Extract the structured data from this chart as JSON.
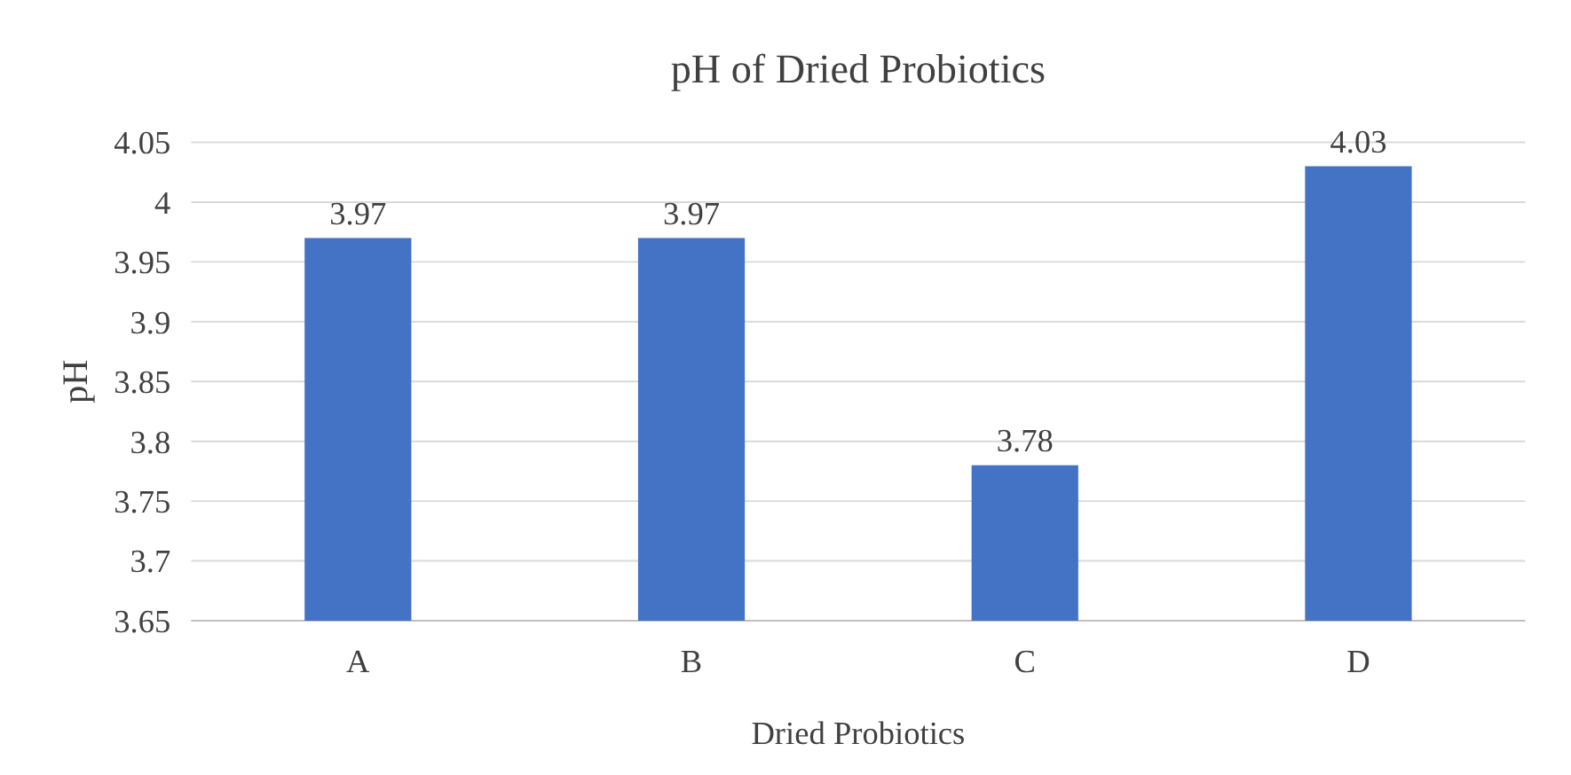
{
  "chart_data": {
    "type": "bar",
    "title": "pH of Dried Probiotics",
    "xlabel": "Dried Probiotics",
    "ylabel": "pH",
    "categories": [
      "A",
      "B",
      "C",
      "D"
    ],
    "values": [
      3.97,
      3.97,
      3.78,
      4.03
    ],
    "color": "#4472c4",
    "ylim": [
      3.65,
      4.05
    ],
    "yticks": [
      3.65,
      3.7,
      3.75,
      3.8,
      3.85,
      3.9,
      3.95,
      {
        "value": 4,
        "label": "4"
      },
      4.05
    ],
    "grid": "y",
    "data_labels": true
  }
}
